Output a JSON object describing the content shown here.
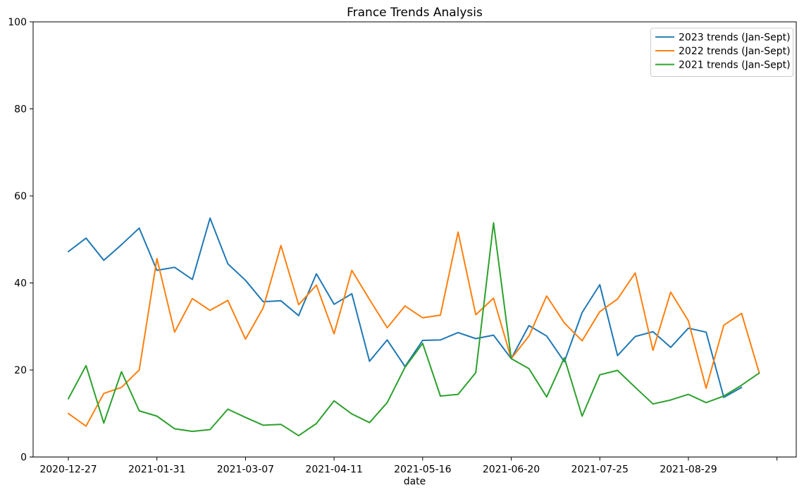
{
  "figure": {
    "title": "France Trends Analysis",
    "x_axis_label": "date",
    "background_color": "#ffffff",
    "spine_color": "#000000",
    "text_color": "#000000"
  },
  "legend": {
    "position": "top-right",
    "border_color": "#cccccc",
    "entries": [
      {
        "label": "2023 trends (Jan-Sept)",
        "color": "#1f77b4"
      },
      {
        "label": "2022 trends (Jan-Sept)",
        "color": "#ff7f0e"
      },
      {
        "label": "2021 trends (Jan-Sept)",
        "color": "#2ca02c"
      }
    ]
  },
  "chart_data": {
    "type": "line",
    "title": "France Trends Analysis",
    "xlabel": "date",
    "ylabel": "",
    "ylim": [
      0,
      100
    ],
    "grid": false,
    "legend_position": "upper right",
    "x_tick_labels": [
      "2020-12-27",
      "2021-01-31",
      "2021-03-07",
      "2021-04-11",
      "2021-05-16",
      "2021-06-20",
      "2021-07-25",
      "2021-08-29"
    ],
    "y_tick_labels": [
      "0",
      "20",
      "40",
      "60",
      "80",
      "100"
    ],
    "x_dates": [
      "2020-12-27",
      "2021-01-03",
      "2021-01-10",
      "2021-01-17",
      "2021-01-24",
      "2021-01-31",
      "2021-02-07",
      "2021-02-14",
      "2021-02-21",
      "2021-02-28",
      "2021-03-07",
      "2021-03-14",
      "2021-03-21",
      "2021-03-28",
      "2021-04-04",
      "2021-04-11",
      "2021-04-18",
      "2021-04-25",
      "2021-05-02",
      "2021-05-09",
      "2021-05-16",
      "2021-05-23",
      "2021-05-30",
      "2021-06-06",
      "2021-06-13",
      "2021-06-20",
      "2021-06-27",
      "2021-07-04",
      "2021-07-11",
      "2021-07-18",
      "2021-07-25",
      "2021-08-01",
      "2021-08-08",
      "2021-08-15",
      "2021-08-22",
      "2021-08-29",
      "2021-09-05",
      "2021-09-12",
      "2021-09-19",
      "2021-09-26"
    ],
    "series": [
      {
        "name": "2023 trends (Jan-Sept)",
        "color": "#1f77b4",
        "values": [
          47.2,
          50.3,
          45.2,
          48.8,
          52.6,
          42.9,
          43.6,
          40.8,
          54.9,
          44.4,
          40.6,
          35.7,
          35.9,
          32.5,
          42.1,
          35.1,
          37.5,
          22.0,
          26.9,
          20.8,
          26.8,
          26.9,
          28.6,
          27.2,
          28.0,
          22.6,
          30.2,
          27.8,
          21.9,
          33.2,
          39.6,
          23.3,
          27.7,
          28.8,
          25.2,
          29.6,
          28.7,
          13.7,
          16.0,
          null
        ]
      },
      {
        "name": "2022 trends (Jan-Sept)",
        "color": "#ff7f0e",
        "values": [
          10.0,
          7.1,
          14.6,
          16.0,
          20.0,
          45.6,
          28.7,
          36.4,
          33.7,
          36.0,
          27.1,
          34.3,
          48.6,
          35.0,
          39.5,
          28.3,
          42.9,
          36.2,
          29.7,
          34.7,
          32.0,
          32.6,
          51.7,
          32.7,
          36.5,
          22.6,
          27.8,
          37.0,
          30.8,
          26.7,
          33.4,
          36.3,
          42.3,
          24.5,
          37.9,
          31.3,
          15.8,
          30.3,
          33.0,
          19.3
        ]
      },
      {
        "name": "2021 trends (Jan-Sept)",
        "color": "#2ca02c",
        "values": [
          13.4,
          21.0,
          7.8,
          19.6,
          10.6,
          9.4,
          6.5,
          5.9,
          6.3,
          11.0,
          9.1,
          7.3,
          7.5,
          4.9,
          7.7,
          12.9,
          9.9,
          7.9,
          12.5,
          20.6,
          26.1,
          14.0,
          14.4,
          19.4,
          53.8,
          22.6,
          20.3,
          13.8,
          22.8,
          9.4,
          18.9,
          19.9,
          16.0,
          12.2,
          13.1,
          14.4,
          12.5,
          14.0,
          16.5,
          19.3
        ]
      }
    ]
  }
}
